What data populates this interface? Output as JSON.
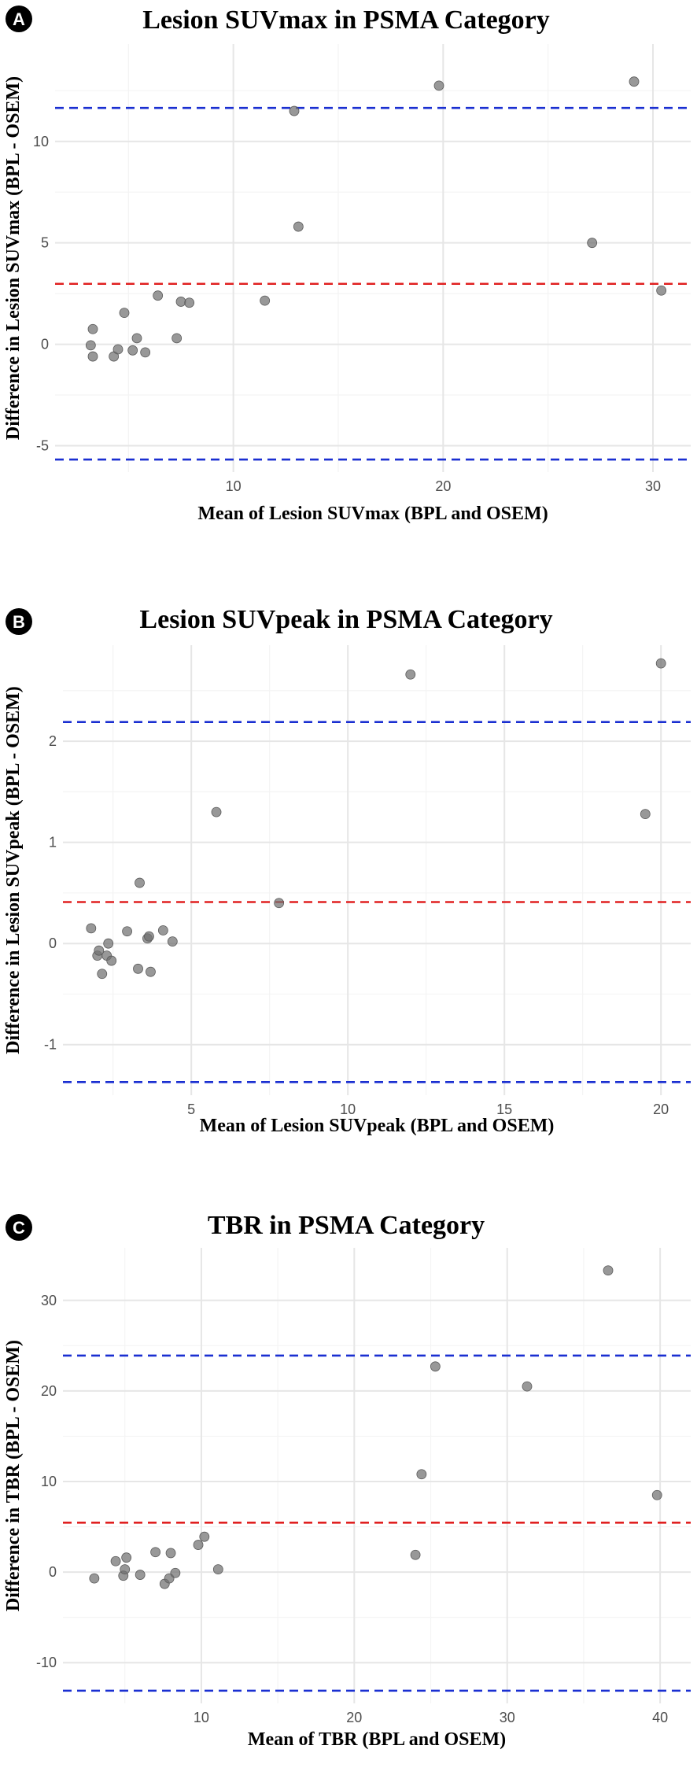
{
  "chart_data": [
    {
      "type": "scatter",
      "badge": "A",
      "title": "Lesion SUVmax in PSMA Category",
      "xlabel": "Mean of Lesion SUVmax (BPL and OSEM)",
      "ylabel": "Difference in Lesion SUVmax (BPL - OSEM)",
      "xlim": [
        1.5,
        31.8
      ],
      "ylim": [
        -6.3,
        14.8
      ],
      "xticks": [
        10,
        20,
        30
      ],
      "yticks": [
        -5,
        0,
        5,
        10
      ],
      "xminor": [
        5,
        15,
        25
      ],
      "yminor": [
        -2.5,
        2.5,
        7.5,
        12.5
      ],
      "lines": {
        "mean": 2.98,
        "upper_loa": 11.65,
        "lower_loa": -5.68
      },
      "line_colors": {
        "mean": "#e02020",
        "loa": "#1a2fd1"
      },
      "points": [
        [
          3.2,
          -0.05
        ],
        [
          3.3,
          -0.6
        ],
        [
          3.3,
          0.75
        ],
        [
          4.3,
          -0.6
        ],
        [
          4.5,
          -0.25
        ],
        [
          4.8,
          1.55
        ],
        [
          5.2,
          -0.3
        ],
        [
          5.4,
          0.3
        ],
        [
          5.8,
          -0.4
        ],
        [
          6.4,
          2.4
        ],
        [
          7.3,
          0.3
        ],
        [
          7.5,
          2.1
        ],
        [
          7.9,
          2.05
        ],
        [
          11.5,
          2.15
        ],
        [
          12.9,
          11.5
        ],
        [
          13.1,
          5.8
        ],
        [
          19.8,
          12.75
        ],
        [
          27.1,
          5.0
        ],
        [
          29.1,
          12.95
        ],
        [
          30.4,
          2.65
        ]
      ]
    },
    {
      "type": "scatter",
      "badge": "B",
      "title": "Lesion SUVpeak in PSMA Category",
      "xlabel": "Mean of Lesion SUVpeak (BPL and OSEM)",
      "ylabel": "Difference in Lesion SUVpeak (BPL - OSEM)",
      "xlim": [
        0.9,
        20.95
      ],
      "ylim": [
        -1.5,
        2.95
      ],
      "xticks": [
        5,
        10,
        15,
        20
      ],
      "yticks": [
        -1,
        0,
        1,
        2
      ],
      "xminor": [
        2.5,
        7.5,
        12.5,
        17.5
      ],
      "yminor": [
        -0.5,
        0.5,
        1.5,
        2.5
      ],
      "lines": {
        "mean": 0.41,
        "upper_loa": 2.19,
        "lower_loa": -1.37
      },
      "line_colors": {
        "mean": "#e02020",
        "loa": "#1a2fd1"
      },
      "points": [
        [
          1.8,
          0.15
        ],
        [
          2.0,
          -0.12
        ],
        [
          2.05,
          -0.07
        ],
        [
          2.15,
          -0.3
        ],
        [
          2.3,
          -0.12
        ],
        [
          2.35,
          0.0
        ],
        [
          2.45,
          -0.17
        ],
        [
          2.95,
          0.12
        ],
        [
          3.3,
          -0.25
        ],
        [
          3.35,
          0.6
        ],
        [
          3.6,
          0.05
        ],
        [
          3.65,
          0.07
        ],
        [
          3.7,
          -0.28
        ],
        [
          4.1,
          0.13
        ],
        [
          4.4,
          0.02
        ],
        [
          5.8,
          1.3
        ],
        [
          7.8,
          0.4
        ],
        [
          12.0,
          2.66
        ],
        [
          19.5,
          1.28
        ],
        [
          20.0,
          2.77
        ]
      ]
    },
    {
      "type": "scatter",
      "badge": "C",
      "title": "TBR in PSMA Category",
      "xlabel": "Mean of TBR (BPL and OSEM)",
      "ylabel": "Difference in TBR (BPL - OSEM)",
      "xlim": [
        0.95,
        42.0
      ],
      "ylim": [
        -14.5,
        35.8
      ],
      "xticks": [
        10,
        20,
        30,
        40
      ],
      "yticks": [
        -10,
        0,
        10,
        20,
        30
      ],
      "xminor": [
        5,
        15,
        25,
        35
      ],
      "yminor": [
        -5,
        5,
        15,
        25
      ],
      "lines": {
        "mean": 5.45,
        "upper_loa": 23.9,
        "lower_loa": -13.1
      },
      "line_colors": {
        "mean": "#e02020",
        "loa": "#1a2fd1"
      },
      "points": [
        [
          3.0,
          -0.7
        ],
        [
          4.4,
          1.2
        ],
        [
          4.9,
          -0.4
        ],
        [
          5.0,
          0.3
        ],
        [
          5.1,
          1.6
        ],
        [
          6.0,
          -0.3
        ],
        [
          7.0,
          2.2
        ],
        [
          7.6,
          -1.3
        ],
        [
          7.9,
          -0.7
        ],
        [
          8.0,
          2.1
        ],
        [
          8.3,
          -0.1
        ],
        [
          9.8,
          3.0
        ],
        [
          10.2,
          3.9
        ],
        [
          11.1,
          0.3
        ],
        [
          24.0,
          1.9
        ],
        [
          24.4,
          10.8
        ],
        [
          25.3,
          22.7
        ],
        [
          31.3,
          20.5
        ],
        [
          36.6,
          33.3
        ],
        [
          39.8,
          8.5
        ]
      ]
    }
  ]
}
